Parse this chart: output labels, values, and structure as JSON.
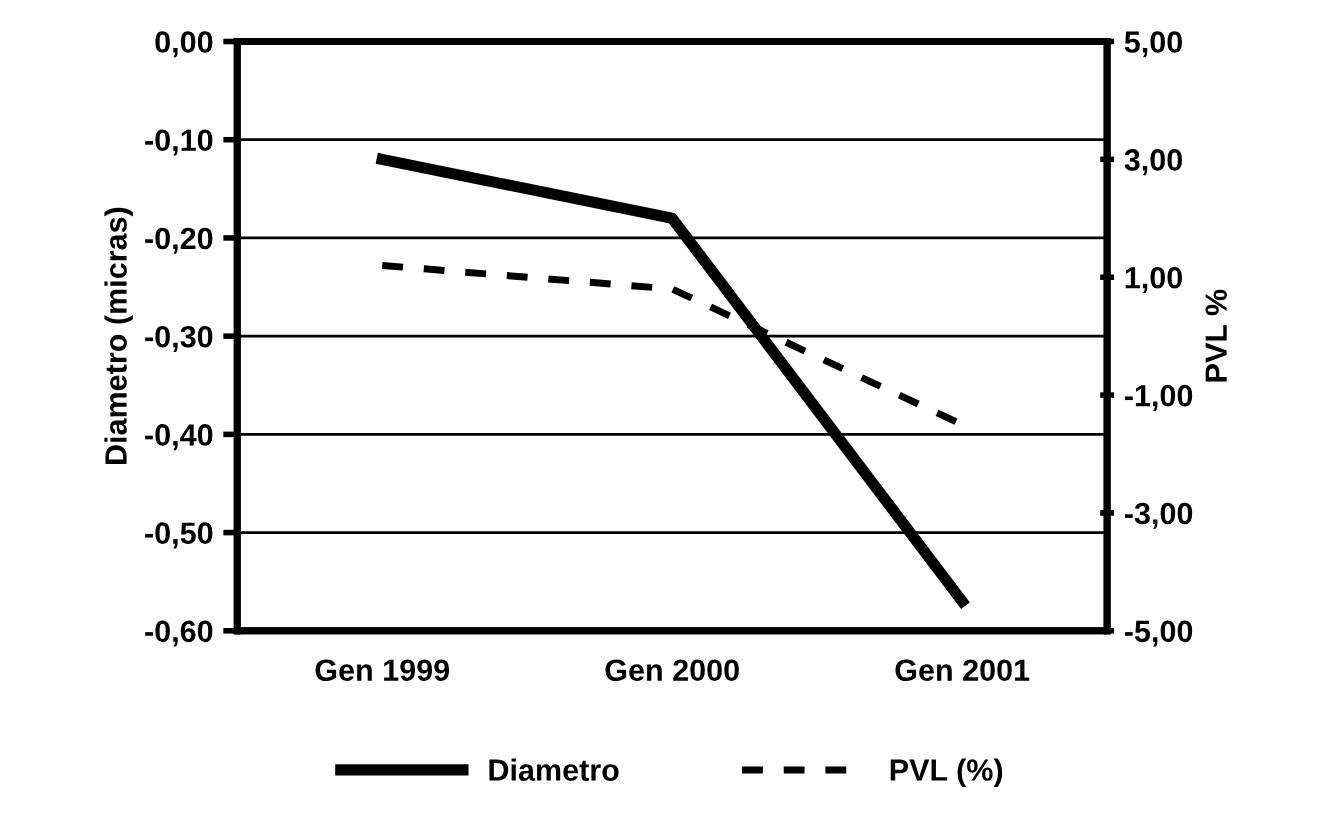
{
  "chart_data": {
    "type": "line",
    "categories": [
      "Gen 1999",
      "Gen 2000",
      "Gen 2001"
    ],
    "series": [
      {
        "name": "Diametro",
        "color": "#000000",
        "values": [
          -0.12,
          -0.18,
          -0.57
        ],
        "line_style": "solid"
      },
      {
        "name": "PVL (%)",
        "color": "#000000",
        "values": [
          1.2,
          0.8,
          -1.5
        ],
        "axis": "y2",
        "line_style": "dashed"
      }
    ],
    "ylabel": "Diametro (micras)",
    "y2label": "PVL %",
    "ylim": [
      -0.6,
      0.0
    ],
    "yticks": [
      {
        "value": -0.6,
        "label": "-0,60"
      },
      {
        "value": -0.5,
        "label": "-0,50"
      },
      {
        "value": -0.4,
        "label": "-0,40"
      },
      {
        "value": -0.3,
        "label": "-0,30"
      },
      {
        "value": -0.2,
        "label": "-0,20"
      },
      {
        "value": -0.1,
        "label": "-0,10"
      },
      {
        "value": 0.0,
        "label": "0,00"
      }
    ],
    "y2lim": [
      -5,
      5
    ],
    "y2ticks": [
      {
        "value": -5,
        "label": "-5,00"
      },
      {
        "value": -3,
        "label": "-3,00"
      },
      {
        "value": -1,
        "label": "-1,00"
      },
      {
        "value": 1,
        "label": "1,00"
      },
      {
        "value": 3,
        "label": "3,00"
      },
      {
        "value": 5,
        "label": "5,00"
      }
    ],
    "grid": "y",
    "legend": "bottom",
    "marker": "none"
  }
}
